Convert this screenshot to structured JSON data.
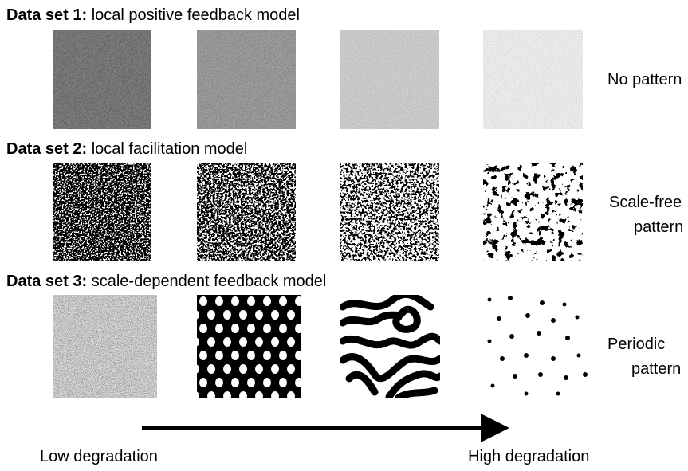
{
  "rows": [
    {
      "set": "Data set 1:",
      "model": "local positive feedback model",
      "pattern": [
        "No pattern"
      ]
    },
    {
      "set": "Data set 2:",
      "model": "local facilitation model",
      "pattern": [
        "Scale-free",
        "pattern"
      ]
    },
    {
      "set": "Data set 3:",
      "model": "scale-dependent feedback model",
      "pattern": [
        "Periodic",
        "pattern"
      ]
    }
  ],
  "axis": {
    "low": "Low degradation",
    "high": "High degradation"
  }
}
